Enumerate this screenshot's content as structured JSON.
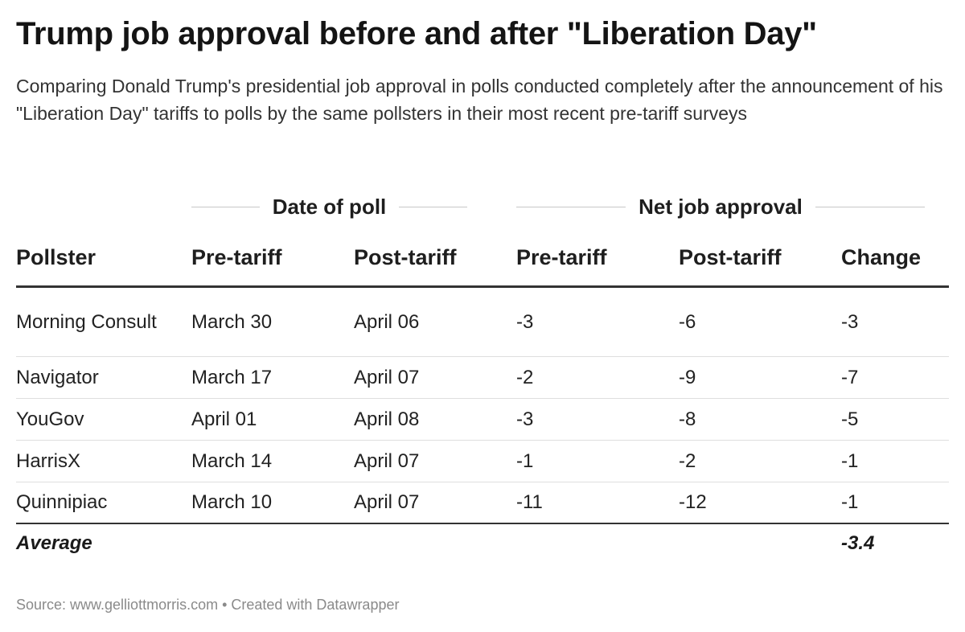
{
  "title": "Trump job approval before and after \"Liberation Day\"",
  "subtitle": "Comparing Donald Trump's presidential job approval in polls conducted completely after the announcement of his \"Liberation Day\" tariffs to polls by the same pollsters in their most recent pre-tariff surveys",
  "groups": {
    "date": "Date of poll",
    "approval": "Net job approval"
  },
  "columns": [
    "Pollster",
    "Pre-tariff",
    "Post-tariff",
    "Pre-tariff",
    "Post-tariff",
    "Change"
  ],
  "footer": {
    "label": "Average",
    "value": "-3.4"
  },
  "source": "Source: www.gelliottmorris.com • Created with Datawrapper",
  "chart_data": {
    "type": "table",
    "title": "Trump job approval before and after \"Liberation Day\"",
    "column_groups": [
      {
        "name": "Date of poll",
        "columns": [
          "Pre-tariff",
          "Post-tariff"
        ]
      },
      {
        "name": "Net job approval",
        "columns": [
          "Pre-tariff",
          "Post-tariff",
          "Change"
        ]
      }
    ],
    "columns": [
      "Pollster",
      "Pre-tariff",
      "Post-tariff",
      "Pre-tariff",
      "Post-tariff",
      "Change"
    ],
    "rows": [
      [
        "Morning Consult",
        "March 30",
        "April 06",
        "-3",
        "-6",
        "-3"
      ],
      [
        "Navigator",
        "March 17",
        "April 07",
        "-2",
        "-9",
        "-7"
      ],
      [
        "YouGov",
        "April 01",
        "April 08",
        "-3",
        "-8",
        "-5"
      ],
      [
        "HarrisX",
        "March 14",
        "April 07",
        "-1",
        "-2",
        "-1"
      ],
      [
        "Quinnipiac",
        "March 10",
        "April 07",
        "-11",
        "-12",
        "-1"
      ]
    ],
    "average": {
      "label": "Average",
      "change": "-3.4"
    }
  }
}
